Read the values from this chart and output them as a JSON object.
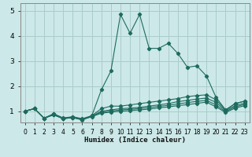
{
  "xlabel": "Humidex (Indice chaleur)",
  "bg_color": "#cce8e8",
  "grid_color": "#aacccc",
  "line_color": "#1e6b5e",
  "xlim": [
    -0.5,
    23.5
  ],
  "ylim": [
    0.55,
    5.3
  ],
  "yticks": [
    1,
    2,
    3,
    4,
    5
  ],
  "xticks": [
    0,
    1,
    2,
    3,
    4,
    5,
    6,
    7,
    8,
    9,
    10,
    11,
    12,
    13,
    14,
    15,
    16,
    17,
    18,
    19,
    20,
    21,
    22,
    23
  ],
  "series": [
    [
      0,
      1.0,
      1,
      1.1,
      2,
      0.72,
      3,
      0.85,
      4,
      0.7,
      5,
      0.75,
      6,
      0.65,
      7,
      0.82,
      8,
      1.85,
      9,
      2.6,
      10,
      4.85,
      11,
      4.1,
      12,
      4.85,
      13,
      3.5,
      14,
      3.5,
      15,
      3.7,
      16,
      3.3,
      17,
      2.75,
      18,
      2.8,
      19,
      2.4,
      20,
      1.55,
      21,
      1.05,
      22,
      1.3,
      23,
      1.4
    ],
    [
      0,
      1.0,
      1,
      1.1,
      2,
      0.72,
      3,
      0.9,
      4,
      0.73,
      5,
      0.78,
      6,
      0.7,
      7,
      0.82,
      8,
      1.1,
      9,
      1.2,
      10,
      1.2,
      11,
      1.25,
      12,
      1.3,
      13,
      1.35,
      14,
      1.4,
      15,
      1.45,
      16,
      1.5,
      17,
      1.58,
      18,
      1.62,
      19,
      1.65,
      20,
      1.45,
      21,
      1.05,
      22,
      1.3,
      23,
      1.4
    ],
    [
      0,
      1.0,
      1,
      1.1,
      2,
      0.72,
      3,
      0.88,
      4,
      0.72,
      5,
      0.76,
      6,
      0.68,
      7,
      0.8,
      8,
      1.0,
      9,
      1.05,
      10,
      1.1,
      11,
      1.12,
      12,
      1.15,
      13,
      1.2,
      14,
      1.25,
      15,
      1.3,
      16,
      1.38,
      17,
      1.43,
      18,
      1.48,
      19,
      1.52,
      20,
      1.35,
      21,
      1.02,
      22,
      1.22,
      23,
      1.32
    ],
    [
      0,
      1.0,
      1,
      1.1,
      2,
      0.72,
      3,
      0.87,
      4,
      0.71,
      5,
      0.75,
      6,
      0.67,
      7,
      0.79,
      8,
      0.96,
      9,
      1.0,
      10,
      1.05,
      11,
      1.07,
      12,
      1.1,
      13,
      1.14,
      14,
      1.19,
      15,
      1.23,
      16,
      1.29,
      17,
      1.34,
      18,
      1.39,
      19,
      1.43,
      20,
      1.25,
      21,
      0.98,
      22,
      1.17,
      23,
      1.27
    ],
    [
      0,
      1.0,
      1,
      1.1,
      2,
      0.72,
      3,
      0.86,
      4,
      0.7,
      5,
      0.74,
      6,
      0.66,
      7,
      0.78,
      8,
      0.92,
      9,
      0.96,
      10,
      1.0,
      11,
      1.02,
      12,
      1.05,
      13,
      1.08,
      14,
      1.13,
      15,
      1.17,
      16,
      1.22,
      17,
      1.26,
      18,
      1.31,
      19,
      1.36,
      20,
      1.17,
      21,
      0.95,
      22,
      1.12,
      23,
      1.22
    ]
  ]
}
